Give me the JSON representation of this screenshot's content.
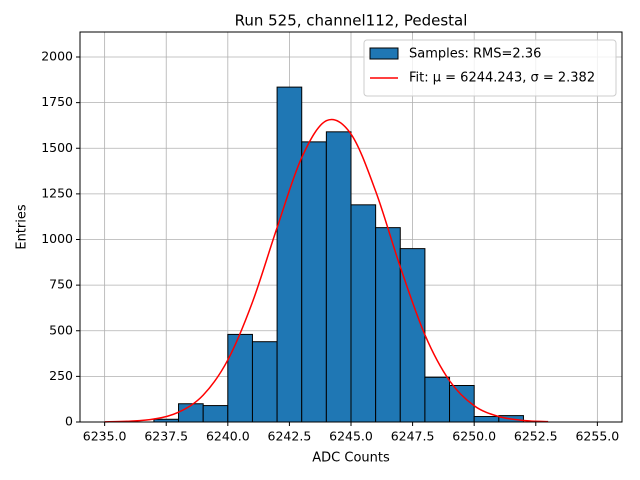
{
  "chart_data": {
    "type": "histogram",
    "title": "Run 525, channel112, Pedestal",
    "xlabel": "ADC Counts",
    "ylabel": "Entries",
    "name": "Samples: RMS=2.36",
    "color": "#1f77b4",
    "bins": [
      6235,
      6236,
      6237,
      6238,
      6239,
      6240,
      6241,
      6242,
      6243,
      6244,
      6245,
      6246,
      6247,
      6248,
      6249,
      6250,
      6251,
      6252,
      6253,
      6254,
      6255
    ],
    "values": [
      0,
      0,
      15,
      100,
      90,
      480,
      440,
      1835,
      1535,
      1590,
      1190,
      1065,
      950,
      245,
      200,
      30,
      35,
      0,
      0,
      0
    ],
    "fit": {
      "type": "line",
      "name": "Fit: μ = 6244.243, σ = 2.382",
      "color": "#ff0000",
      "x": [
        6235,
        6236,
        6237,
        6238,
        6239,
        6240,
        6241,
        6242,
        6243,
        6244,
        6245,
        6246,
        6247,
        6248,
        6249,
        6250,
        6251,
        6252,
        6253
      ],
      "values": [
        0.9,
        4.2,
        16.3,
        53.5,
        147,
        340,
        657,
        1065,
        1449,
        1651,
        1578,
        1265,
        850,
        478,
        226,
        89,
        30,
        8.3,
        1.9
      ]
    },
    "xlim": [
      6234,
      6256
    ],
    "ylim": [
      0,
      2137
    ],
    "xticks": [
      {
        "value": 6235,
        "label": "6235.0"
      },
      {
        "value": 6237.5,
        "label": "6237.5"
      },
      {
        "value": 6240,
        "label": "6240.0"
      },
      {
        "value": 6242.5,
        "label": "6242.5"
      },
      {
        "value": 6245,
        "label": "6245.0"
      },
      {
        "value": 6247.5,
        "label": "6247.5"
      },
      {
        "value": 6250,
        "label": "6250.0"
      },
      {
        "value": 6252.5,
        "label": "6252.5"
      },
      {
        "value": 6255,
        "label": "6255.0"
      }
    ],
    "yticks": [
      0,
      250,
      500,
      750,
      1000,
      1250,
      1500,
      1750,
      2000
    ],
    "grid": true,
    "legend": "upper right"
  }
}
